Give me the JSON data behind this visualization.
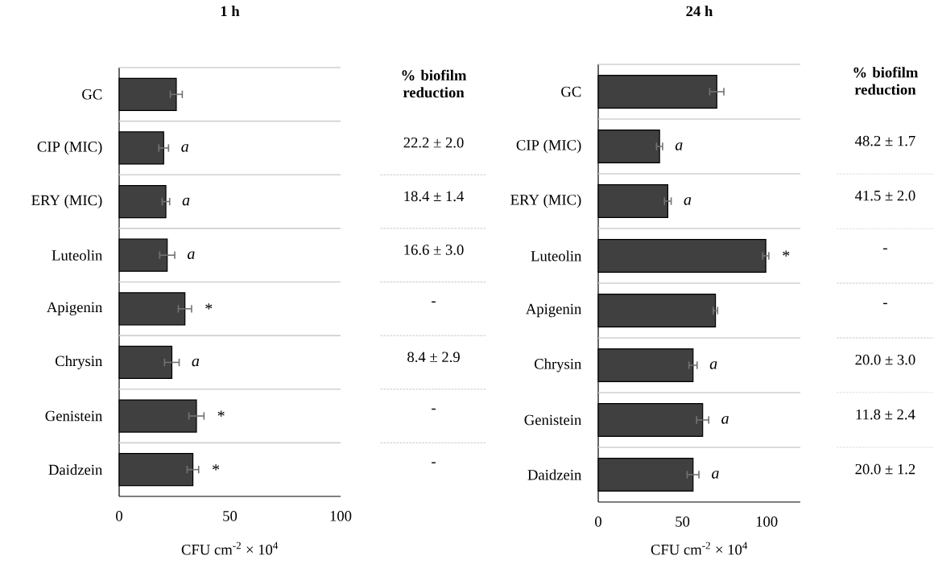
{
  "chart_data": [
    {
      "type": "bar",
      "orientation": "horizontal",
      "title": "1 h",
      "xlabel": "CFU cm$^{-2}$ × 10$^{4}$",
      "categories": [
        "GC",
        "CIP (MIC)",
        "ERY (MIC)",
        "Luteolin",
        "Apigenin",
        "Chrysin",
        "Genistein",
        "Daidzein"
      ],
      "values": [
        25.8,
        20.1,
        21.1,
        21.7,
        29.7,
        23.8,
        34.9,
        33.3
      ],
      "errors": [
        2.7,
        2.2,
        1.7,
        3.4,
        3.0,
        3.3,
        3.4,
        2.6
      ],
      "value_labels": [
        null,
        "a",
        "a",
        "a",
        "*",
        "a",
        "*",
        "*"
      ],
      "color": "#404040",
      "xlim": [
        0,
        100
      ],
      "xticks": [
        0,
        50,
        100
      ],
      "grid": "y",
      "annotations": [
        "% biofilm reduction",
        "22.2 ± 2.0",
        "18.4 ± 1.4",
        "16.6 ± 3.0",
        "-",
        "8.4 ± 2.9",
        "-",
        "-"
      ]
    },
    {
      "type": "bar",
      "orientation": "horizontal",
      "title": "24 h",
      "xlabel": "CFU cm$^{-2}$ × 10$^{4}$",
      "categories": [
        "GC",
        "CIP (MIC)",
        "ERY (MIC)",
        "Luteolin",
        "Apigenin",
        "Chrysin",
        "Genistein",
        "Daidzein"
      ],
      "values": [
        70.4,
        36.4,
        41.3,
        99.5,
        69.6,
        56.3,
        62.0,
        56.3
      ],
      "errors": [
        4.2,
        1.8,
        2.0,
        1.8,
        1.3,
        2.4,
        3.6,
        3.5
      ],
      "value_labels": [
        null,
        "a",
        "a",
        "*",
        null,
        "a",
        "a",
        "a"
      ],
      "color": "#404040",
      "xlim": [
        0,
        120
      ],
      "xticks": [
        0,
        50,
        100
      ],
      "grid": "y",
      "annotations": [
        "% biofilm reduction",
        "48.2 ± 1.7",
        "41.5 ± 2.0",
        "-",
        "-",
        "20.0 ± 3.0",
        "11.8 ± 2.4",
        "20.0 ± 1.2"
      ]
    }
  ]
}
